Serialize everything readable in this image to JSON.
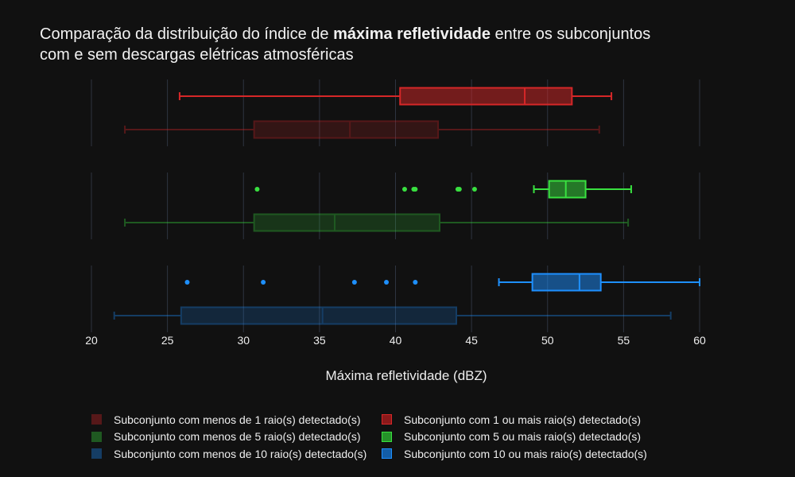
{
  "title": {
    "line1_prefix": "Comparação da distribuição do índice de ",
    "line1_bold": "máxima refletividade",
    "line1_suffix": " entre os subconjuntos",
    "line2": "com e sem descargas elétricas atmosféricas"
  },
  "chart_data": {
    "type": "box",
    "title": "Comparação da distribuição do índice de máxima refletividade entre os subconjuntos com e sem descargas elétricas atmosféricas",
    "xlabel": "Máxima refletividade (dBZ)",
    "xlim": [
      20,
      60
    ],
    "xticks": [
      20,
      25,
      30,
      35,
      40,
      45,
      50,
      55,
      60
    ],
    "grid": true,
    "legend_position": "bottom",
    "panels": [
      {
        "boxes": [
          {
            "name": "Subconjunto com 1 ou mais raio(s) detectado(s)",
            "color": "#d62728",
            "faded": false,
            "min": 25.8,
            "q1": 40.3,
            "median": 48.5,
            "q3": 51.6,
            "max": 54.2,
            "outliers": []
          },
          {
            "name": "Subconjunto com menos de 1 raio(s) detectado(s)",
            "color": "#d62728",
            "faded": true,
            "min": 22.2,
            "q1": 30.7,
            "median": 37.0,
            "q3": 42.8,
            "max": 53.4,
            "outliers": []
          }
        ]
      },
      {
        "boxes": [
          {
            "name": "Subconjunto com 5 ou mais raio(s) detectado(s)",
            "color": "#39e040",
            "faded": false,
            "min": 49.1,
            "q1": 50.1,
            "median": 51.2,
            "q3": 52.5,
            "max": 55.5,
            "outliers": [
              30.9,
              40.6,
              41.2,
              41.3,
              44.1,
              44.2,
              45.2
            ]
          },
          {
            "name": "Subconjunto com menos de 5 raio(s) detectado(s)",
            "color": "#39e040",
            "faded": true,
            "min": 22.2,
            "q1": 30.7,
            "median": 36.0,
            "q3": 42.9,
            "max": 55.3,
            "outliers": []
          }
        ]
      },
      {
        "boxes": [
          {
            "name": "Subconjunto com 10 ou mais raio(s) detectado(s)",
            "color": "#1e90ff",
            "faded": false,
            "min": 46.8,
            "q1": 49.0,
            "median": 52.1,
            "q3": 53.5,
            "max": 60.0,
            "outliers": [
              26.3,
              31.3,
              37.3,
              39.4,
              41.3
            ]
          },
          {
            "name": "Subconjunto com menos de 10 raio(s) detectado(s)",
            "color": "#1e90ff",
            "faded": true,
            "min": 21.5,
            "q1": 25.9,
            "median": 35.2,
            "q3": 44.0,
            "max": 58.1,
            "outliers": []
          }
        ]
      }
    ]
  },
  "legend": [
    {
      "label": "Subconjunto com menos de 1 raio(s) detectado(s)",
      "color": "#d62728",
      "faded": true
    },
    {
      "label": "Subconjunto com 1 ou mais raio(s) detectado(s)",
      "color": "#d62728",
      "faded": false
    },
    {
      "label": "Subconjunto com menos de 5 raio(s) detectado(s)",
      "color": "#39e040",
      "faded": true
    },
    {
      "label": "Subconjunto com 5 ou mais raio(s) detectado(s)",
      "color": "#39e040",
      "faded": false
    },
    {
      "label": "Subconjunto com menos de 10 raio(s) detectado(s)",
      "color": "#1e90ff",
      "faded": true
    },
    {
      "label": "Subconjunto com 10 ou mais raio(s) detectado(s)",
      "color": "#1e90ff",
      "faded": false
    }
  ]
}
